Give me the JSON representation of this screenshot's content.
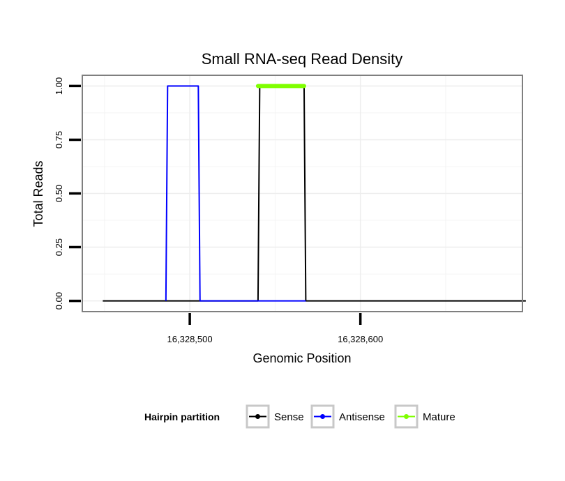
{
  "chart_data": {
    "type": "line",
    "title": "Small RNA-seq Read Density",
    "xlabel": "Genomic Position",
    "ylabel": "Total Reads",
    "xlim": [
      16328437,
      16328695
    ],
    "ylim": [
      -0.05,
      1.05
    ],
    "x_ticks": [
      16328500,
      16328600
    ],
    "x_tick_labels": [
      "16,328,500",
      "16,328,600"
    ],
    "y_ticks": [
      0,
      0.25,
      0.5,
      0.75,
      1
    ],
    "y_tick_labels": [
      "0.00",
      "0.25",
      "0.50",
      "0.75",
      "1.00"
    ],
    "grid": true,
    "legend": {
      "title": "Hairpin partition",
      "position": "bottom",
      "entries": [
        {
          "name": "Sense",
          "color": "#000000"
        },
        {
          "name": "Antisense",
          "color": "#0000ff"
        },
        {
          "name": "Mature",
          "color": "#7fff00"
        }
      ]
    },
    "series": [
      {
        "name": "Sense",
        "color": "#000000",
        "x": [
          16328449,
          16328540,
          16328541,
          16328567,
          16328568,
          16328697
        ],
        "y": [
          0,
          0,
          1,
          1,
          0,
          0
        ]
      },
      {
        "name": "Antisense",
        "color": "#0000ff",
        "x": [
          16328486,
          16328487,
          16328505,
          16328506,
          16328540,
          16328568
        ],
        "y": [
          0,
          1,
          1,
          0,
          0,
          0
        ]
      },
      {
        "name": "Mature",
        "color": "#7fff00",
        "x": [
          16328540,
          16328567
        ],
        "y": [
          1,
          1
        ]
      }
    ]
  }
}
